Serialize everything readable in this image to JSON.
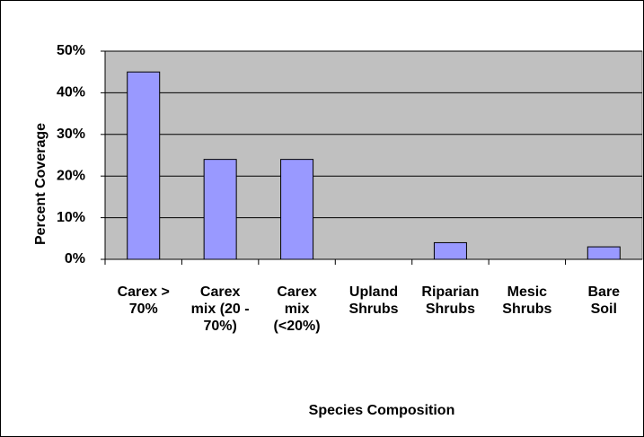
{
  "chart_data": {
    "type": "bar",
    "categories": [
      "Carex >\n70%",
      "Carex\nmix (20 -\n70%)",
      "Carex\nmix\n(<20%)",
      "Upland\nShrubs",
      "Riparian\nShrubs",
      "Mesic\nShrubs",
      "Bare\nSoil"
    ],
    "values": [
      45,
      24,
      24,
      0,
      4,
      0,
      3
    ],
    "color": "#9999ff",
    "ylim": [
      0,
      50
    ],
    "yticks": [
      {
        "value": 0,
        "label": "0%"
      },
      {
        "value": 10,
        "label": "10%"
      },
      {
        "value": 20,
        "label": "20%"
      },
      {
        "value": 30,
        "label": "30%"
      },
      {
        "value": 40,
        "label": "40%"
      },
      {
        "value": 50,
        "label": "50%"
      }
    ],
    "grid": true,
    "x_label": "Species Composition",
    "y_label": "Percent Coverage"
  }
}
